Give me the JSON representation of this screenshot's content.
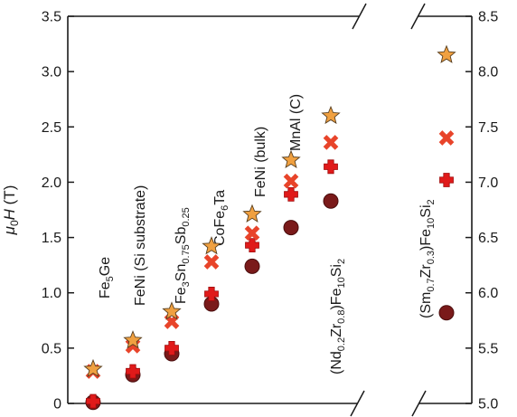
{
  "chart_data": {
    "type": "scatter",
    "title": "",
    "ylabel_parts": {
      "mu": "μ",
      "sub": "0",
      "H": "H",
      "unit": " (T)"
    },
    "left_axis": {
      "ylim": [
        0,
        3.5
      ],
      "ticks": [
        "0",
        "0.5",
        "1.0",
        "1.5",
        "2.0",
        "2.5",
        "3.0",
        "3.5"
      ]
    },
    "right_axis": {
      "ylim": [
        5.0,
        8.5
      ],
      "ticks": [
        "5.0",
        "5.5",
        "6.0",
        "6.5",
        "7.0",
        "7.5",
        "8.0",
        "8.5"
      ]
    },
    "axis_break": true,
    "grid": false,
    "legend": "none",
    "marker_series": [
      {
        "marker": "star",
        "color": "#f0a040"
      },
      {
        "marker": "x",
        "color": "#e8442a"
      },
      {
        "marker": "plus",
        "color": "#e01a1a"
      },
      {
        "marker": "circle",
        "color": "#7a1a1a"
      }
    ],
    "materials": [
      {
        "label": [
          [
            "Fe",
            ""
          ],
          [
            "5",
            "sub"
          ],
          [
            "Ge",
            ""
          ]
        ],
        "axis": "left",
        "values": {
          "star": 0.31,
          "x": 0.29,
          "plus": 0.02,
          "circle": 0.01
        }
      },
      {
        "label": [
          [
            "FeNi (Si substrate)",
            ""
          ]
        ],
        "axis": "left",
        "values": {
          "star": 0.57,
          "x": 0.52,
          "plus": 0.29,
          "circle": 0.26
        }
      },
      {
        "label": [
          [
            "Fe",
            ""
          ],
          [
            "3",
            "sub"
          ],
          [
            "Sn",
            ""
          ],
          [
            "0.75",
            "sub"
          ],
          [
            "Sb",
            ""
          ],
          [
            "0.25",
            "sub"
          ]
        ],
        "axis": "left",
        "values": {
          "star": 0.83,
          "x": 0.74,
          "plus": 0.5,
          "circle": 0.45
        }
      },
      {
        "label": [
          [
            "CoFe",
            ""
          ],
          [
            "6",
            "sub"
          ],
          [
            "Ta",
            ""
          ]
        ],
        "axis": "left",
        "values": {
          "star": 1.42,
          "x": 1.28,
          "plus": 0.99,
          "circle": 0.9
        }
      },
      {
        "label": [
          [
            "FeNi (bulk)",
            ""
          ]
        ],
        "axis": "left",
        "values": {
          "star": 1.71,
          "x": 1.54,
          "plus": 1.43,
          "circle": 1.24
        }
      },
      {
        "label": [
          [
            "MnAl (C)",
            ""
          ]
        ],
        "axis": "left",
        "values": {
          "star": 2.2,
          "x": 2.01,
          "plus": 1.89,
          "circle": 1.59
        }
      },
      {
        "label": [
          [
            "(Nd",
            ""
          ],
          [
            "0.2",
            "sub"
          ],
          [
            "Zr",
            ""
          ],
          [
            "0.8",
            "sub"
          ],
          [
            ")Fe",
            ""
          ],
          [
            "10",
            "sub"
          ],
          [
            "Si",
            ""
          ],
          [
            "2",
            "sub"
          ]
        ],
        "axis": "left",
        "values": {
          "star": 2.6,
          "x": 2.36,
          "plus": 2.14,
          "circle": 1.83
        }
      },
      {
        "label": [
          [
            "(Sm",
            ""
          ],
          [
            "0.7",
            "sub"
          ],
          [
            "Zr",
            ""
          ],
          [
            "0.3",
            "sub"
          ],
          [
            ")Fe",
            ""
          ],
          [
            "10",
            "sub"
          ],
          [
            "Si",
            ""
          ],
          [
            "2",
            "sub"
          ]
        ],
        "axis": "right",
        "values": {
          "star": 8.15,
          "x": 7.4,
          "plus": 7.02,
          "circle": 5.82
        }
      }
    ]
  }
}
